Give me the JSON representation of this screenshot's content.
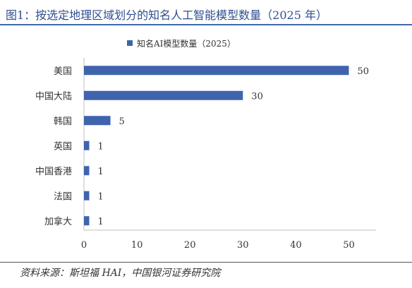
{
  "figure": {
    "title": "图1：按选定地理区域划分的知名人工智能模型数量（2025 年）",
    "source": "资料来源：斯坦福 HAI，中国银河证券研究院"
  },
  "chart_data": {
    "type": "bar",
    "orientation": "horizontal",
    "categories": [
      "美国",
      "中国大陆",
      "韩国",
      "英国",
      "中国香港",
      "法国",
      "加拿大"
    ],
    "series": [
      {
        "name": "知名AI模型数量（2025）",
        "values": [
          50,
          30,
          5,
          1,
          1,
          1,
          1
        ],
        "color": "#3f64ad"
      }
    ],
    "xlim": [
      0,
      50
    ],
    "xticks": [
      0,
      10,
      20,
      30,
      40,
      50
    ],
    "data_labels": true,
    "grid": false,
    "legend_position": "top"
  }
}
